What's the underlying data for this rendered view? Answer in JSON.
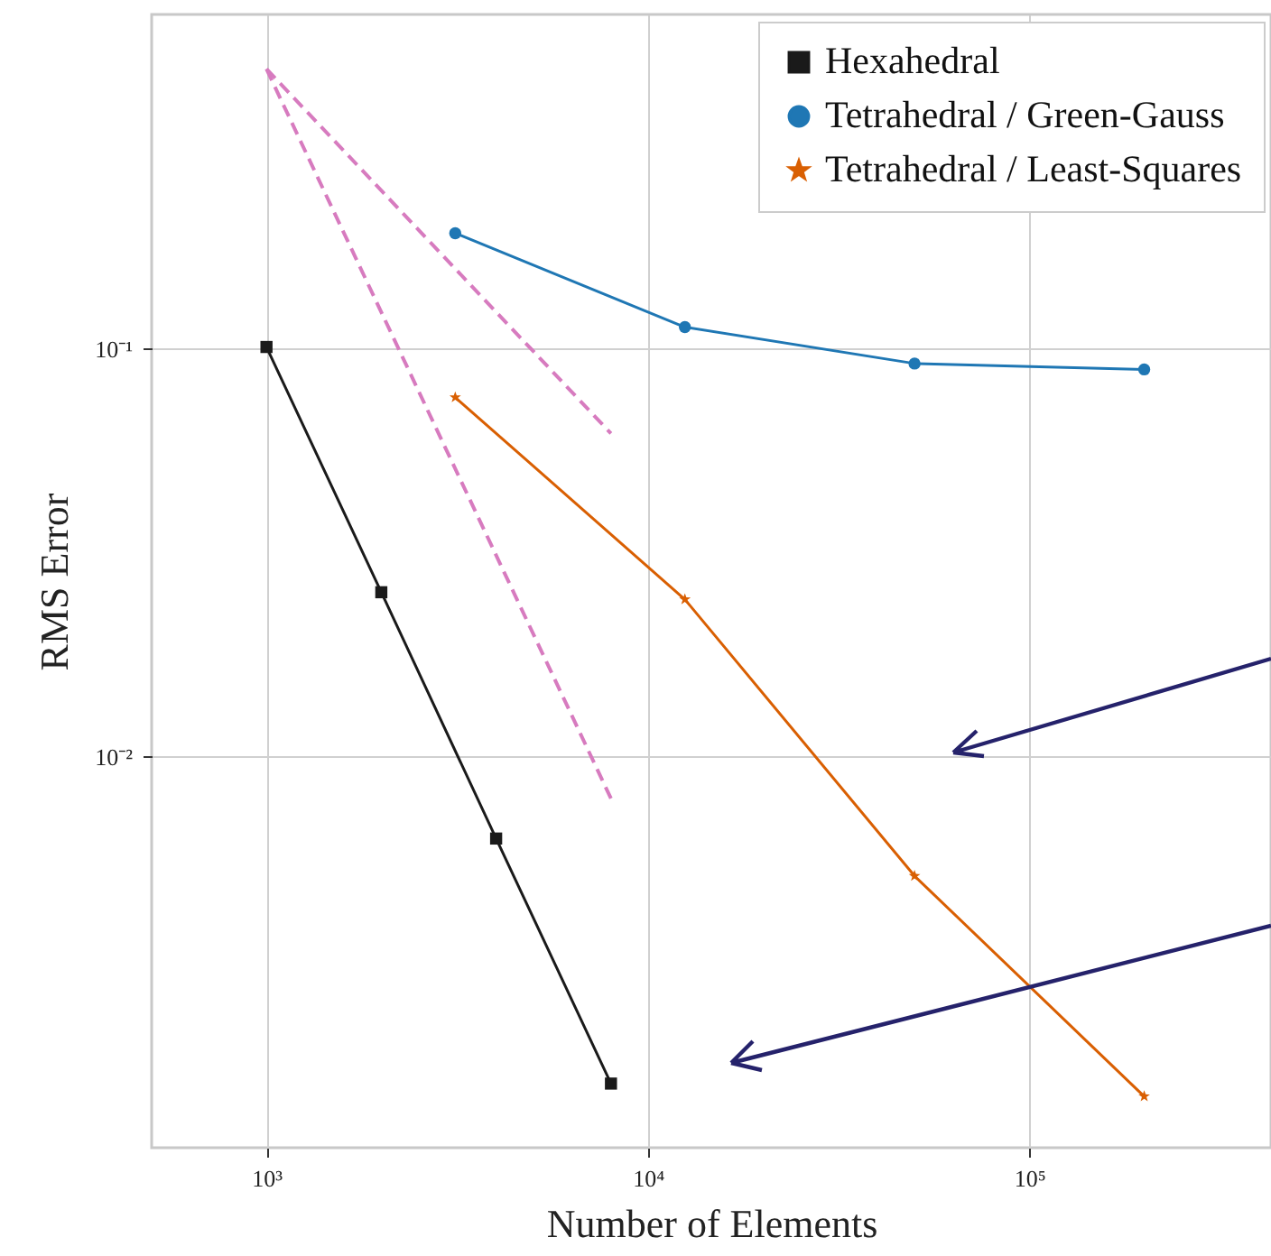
{
  "chart_data": {
    "type": "line",
    "xlabel": "Number of Elements",
    "ylabel": "RMS Error",
    "log": "xy",
    "grid": true,
    "legend": "top right",
    "xlim": [
      500,
      430000
    ],
    "ylim": [
      0.0011,
      0.66
    ],
    "xticks": [
      {
        "value": 1000,
        "label": "10³"
      },
      {
        "value": 10000,
        "label": "10⁴"
      },
      {
        "value": 100000,
        "label": "10⁵"
      }
    ],
    "yticks": [
      {
        "value": 0.1,
        "label": "10⁻¹"
      },
      {
        "value": 0.01,
        "label": "10⁻²"
      }
    ],
    "series": [
      {
        "name": "Hexahedral",
        "color": "#1a1a1a",
        "marker": "square",
        "x": [
          1000,
          2000,
          4000,
          8000
        ],
        "values": [
          0.101,
          0.0253,
          0.0063,
          0.00158
        ]
      },
      {
        "name": "Tetrahedral / Green-Gauss",
        "color": "#1f77b4",
        "marker": "circle",
        "x": [
          3125,
          12500,
          50000,
          200000
        ],
        "values": [
          0.192,
          0.113,
          0.092,
          0.089
        ]
      },
      {
        "name": "Tetrahedral / Least-Squares",
        "color": "#d95f02",
        "marker": "star",
        "x": [
          3125,
          12500,
          50000,
          200000
        ],
        "values": [
          0.076,
          0.0243,
          0.0051,
          0.00147
        ]
      },
      {
        "color": "#d77bbf",
        "line_style": "dashed",
        "marker": "none",
        "x": [
          1000,
          8000
        ],
        "values": [
          0.485,
          0.062
        ]
      },
      {
        "color": "#d77bbf",
        "line_style": "dashed",
        "marker": "none",
        "x": [
          1000,
          8000
        ],
        "values": [
          0.485,
          0.0079
        ]
      }
    ]
  }
}
